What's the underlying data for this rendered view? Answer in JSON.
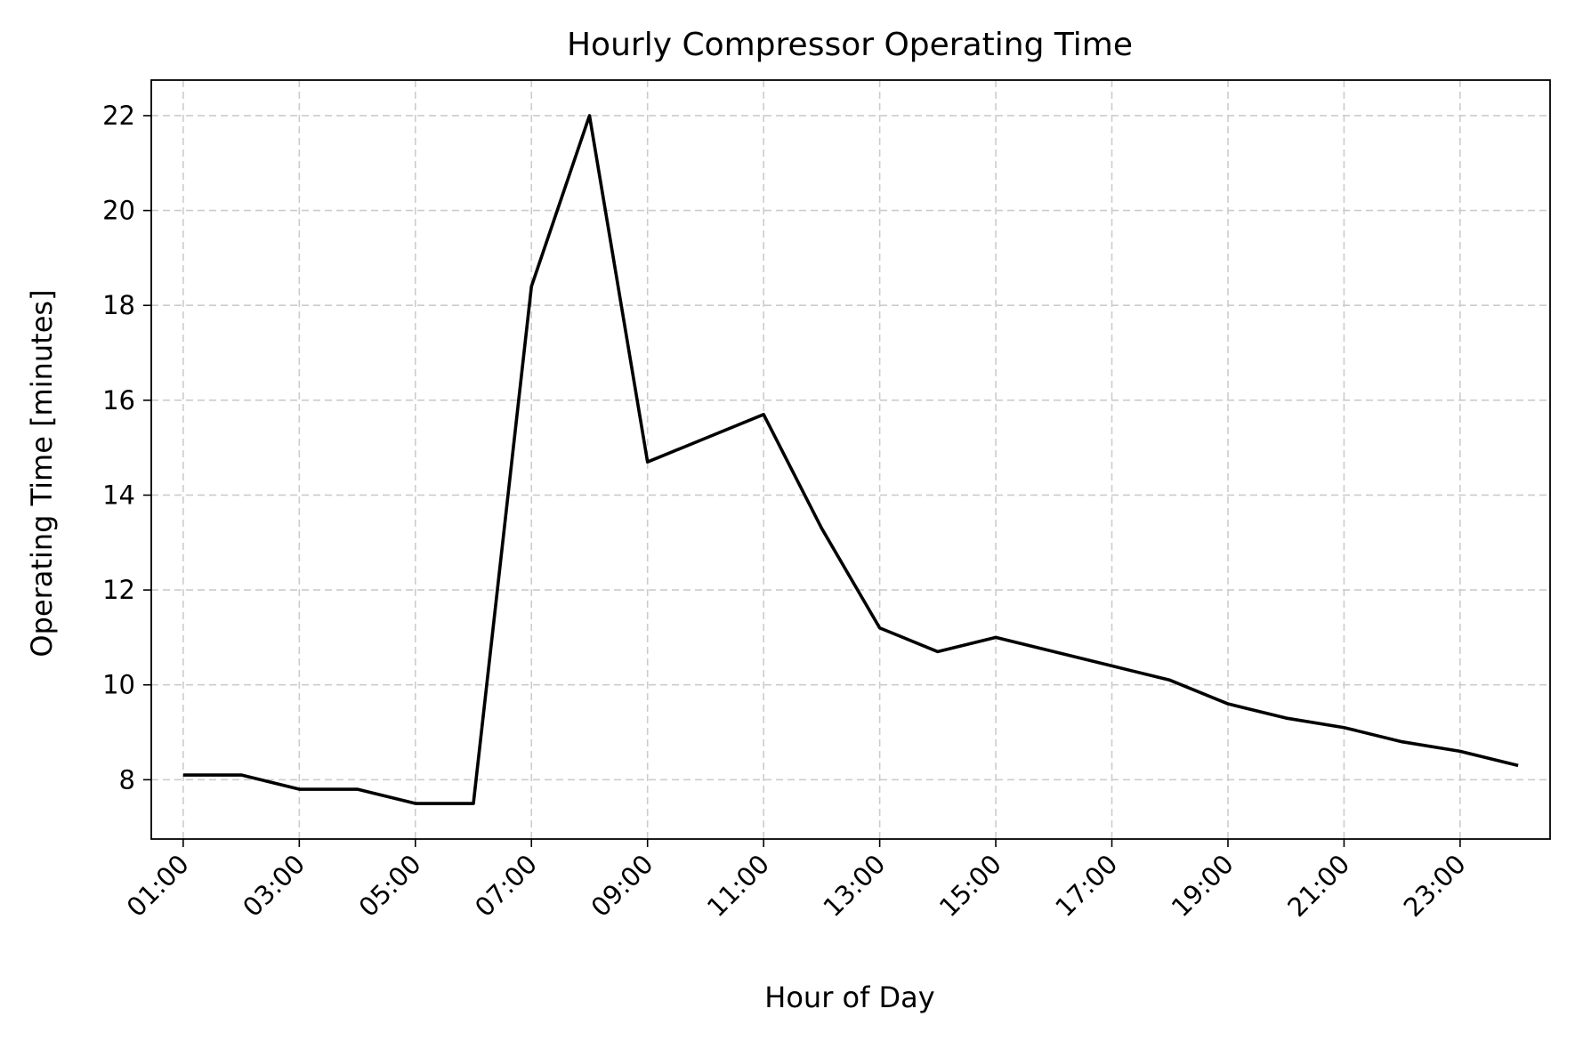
{
  "chart_data": {
    "type": "line",
    "title": "Hourly Compressor Operating Time",
    "xlabel": "Hour of Day",
    "ylabel": "Operating Time [minutes]",
    "x": [
      "01:00",
      "02:00",
      "03:00",
      "04:00",
      "05:00",
      "06:00",
      "07:00",
      "08:00",
      "09:00",
      "10:00",
      "11:00",
      "12:00",
      "13:00",
      "14:00",
      "15:00",
      "16:00",
      "17:00",
      "18:00",
      "19:00",
      "20:00",
      "21:00",
      "22:00",
      "23:00",
      "24:00"
    ],
    "x_tick_labels": [
      "01:00",
      "03:00",
      "05:00",
      "07:00",
      "09:00",
      "11:00",
      "13:00",
      "15:00",
      "17:00",
      "19:00",
      "21:00",
      "23:00"
    ],
    "y_ticks": [
      8,
      10,
      12,
      14,
      16,
      18,
      20,
      22
    ],
    "ylim": [
      6.75,
      22.75
    ],
    "series": [
      {
        "values": [
          8.1,
          8.1,
          7.8,
          7.8,
          7.5,
          7.5,
          18.4,
          22.0,
          14.7,
          15.2,
          15.7,
          13.3,
          11.2,
          10.7,
          11.0,
          10.7,
          10.4,
          10.1,
          9.6,
          9.3,
          9.1,
          8.8,
          8.6,
          8.3
        ],
        "color": "#000000"
      }
    ],
    "grid": true,
    "legend": "none"
  }
}
